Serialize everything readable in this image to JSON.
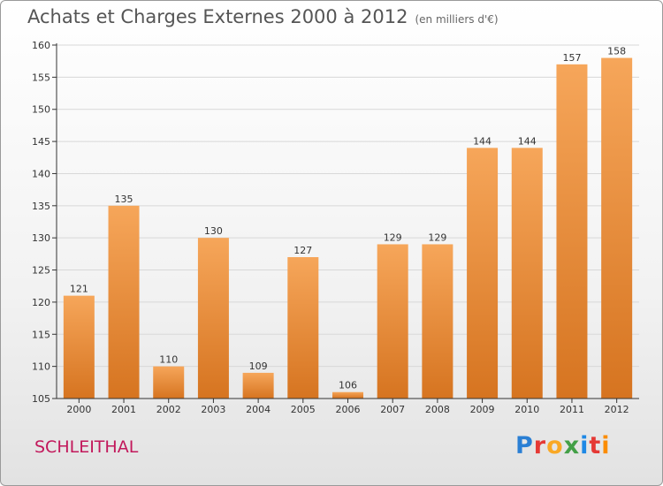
{
  "title": "Achats et Charges Externes 2000 à 2012",
  "unit": "(en milliers d'€)",
  "commune": "SCHLEITHAL",
  "brand": {
    "letters": [
      "P",
      "r",
      "o",
      "x",
      "i",
      "t",
      "i"
    ],
    "colors": [
      "#2a7fd4",
      "#e53935",
      "#f9a825",
      "#43a047",
      "#1e88e5",
      "#e53935",
      "#fb8c00"
    ]
  },
  "colors": {
    "bar_light": "#f6a65a",
    "bar_dark": "#d67420",
    "axis": "#333333",
    "grid": "#d8d8d8"
  },
  "chart_data": {
    "type": "bar",
    "categories": [
      "2000",
      "2001",
      "2002",
      "2003",
      "2004",
      "2005",
      "2006",
      "2007",
      "2008",
      "2009",
      "2010",
      "2011",
      "2012"
    ],
    "values": [
      121,
      135,
      110,
      130,
      109,
      127,
      106,
      129,
      129,
      144,
      144,
      157,
      158
    ],
    "ylim": [
      105,
      160
    ],
    "yticks": [
      105,
      110,
      115,
      120,
      125,
      130,
      135,
      140,
      145,
      150,
      155,
      160
    ],
    "grid": true,
    "data_labels": true
  }
}
